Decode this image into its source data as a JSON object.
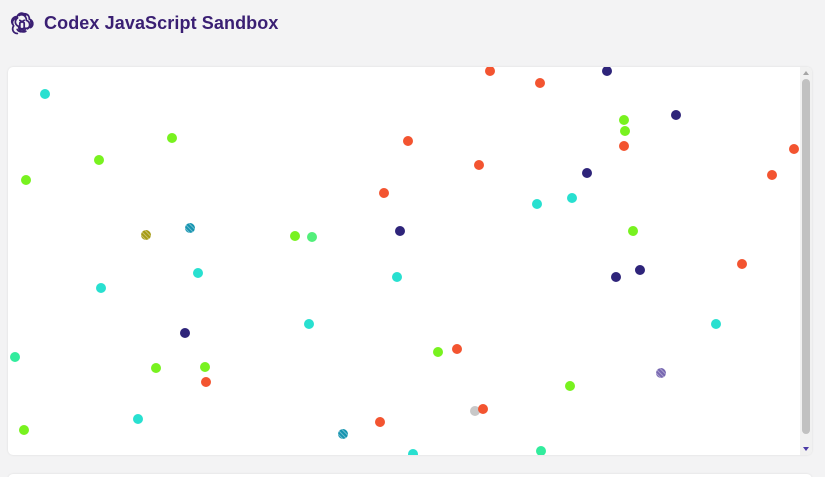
{
  "app": {
    "title": "Codex JavaScript Sandbox",
    "logo_icon": "openai-knot-icon",
    "colors": {
      "title": "#3a1f73",
      "background": "#f3f3f4",
      "orange": "#f35430",
      "cyan": "#28e0d0",
      "lime": "#78f21f",
      "navy": "#2e247a",
      "green_cyan": "#32ec9d",
      "gray": "#c8c8c8"
    }
  },
  "canvas": {
    "label": "",
    "dot_count": 55
  }
}
